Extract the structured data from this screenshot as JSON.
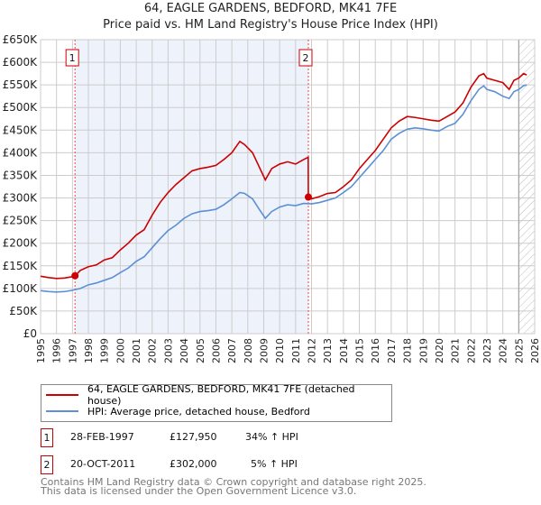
{
  "header": {
    "title": "64, EAGLE GARDENS, BEDFORD, MK41 7FE",
    "subtitle": "Price paid vs. HM Land Registry's House Price Index (HPI)"
  },
  "chart_data": {
    "type": "line",
    "title": "64, EAGLE GARDENS, BEDFORD, MK41 7FE",
    "subtitle": "Price paid vs. HM Land Registry's House Price Index (HPI)",
    "xlim": [
      1995,
      2026
    ],
    "ylim": [
      0,
      650000
    ],
    "x_ticks": [
      "1995",
      "1996",
      "1997",
      "1998",
      "1999",
      "2000",
      "2001",
      "2002",
      "2003",
      "2004",
      "2005",
      "2006",
      "2007",
      "2008",
      "2009",
      "2010",
      "2011",
      "2012",
      "2013",
      "2014",
      "2015",
      "2016",
      "2017",
      "2018",
      "2019",
      "2020",
      "2021",
      "2022",
      "2023",
      "2024",
      "2025",
      "2026"
    ],
    "y_ticks": [
      "£0",
      "£50K",
      "£100K",
      "£150K",
      "£200K",
      "£250K",
      "£300K",
      "£350K",
      "£400K",
      "£450K",
      "£500K",
      "£550K",
      "£600K",
      "£650K"
    ],
    "grid": true,
    "series": [
      {
        "name": "64, EAGLE GARDENS, BEDFORD, MK41 7FE (detached house)",
        "color": "#cc0000",
        "x": [
          1995,
          1995.5,
          1996,
          1996.5,
          1997,
          1997.16,
          1997.5,
          1998,
          1998.5,
          1999,
          1999.5,
          2000,
          2000.5,
          2001,
          2001.5,
          2002,
          2002.5,
          2003,
          2003.5,
          2004,
          2004.5,
          2005,
          2005.5,
          2006,
          2006.5,
          2007,
          2007.5,
          2007.8,
          2008.3,
          2008.7,
          2009.1,
          2009.5,
          2010,
          2010.5,
          2011,
          2011.5,
          2011.79,
          2011.8,
          2012,
          2012.5,
          2013,
          2013.5,
          2014,
          2014.5,
          2015,
          2015.5,
          2016,
          2016.5,
          2017,
          2017.5,
          2018,
          2018.5,
          2019,
          2019.5,
          2020,
          2020.5,
          2021,
          2021.5,
          2022,
          2022.5,
          2022.8,
          2023,
          2023.5,
          2024,
          2024.4,
          2024.7,
          2025,
          2025.3,
          2025.5
        ],
        "y": [
          127000,
          124000,
          122000,
          123000,
          126000,
          127950,
          140000,
          148000,
          152000,
          163000,
          168000,
          185000,
          200000,
          218000,
          230000,
          262000,
          290000,
          312000,
          330000,
          345000,
          360000,
          365000,
          368000,
          372000,
          385000,
          400000,
          425000,
          418000,
          400000,
          370000,
          340000,
          365000,
          375000,
          380000,
          375000,
          385000,
          390000,
          302000,
          298000,
          303000,
          310000,
          312000,
          325000,
          340000,
          365000,
          385000,
          405000,
          430000,
          455000,
          470000,
          480000,
          478000,
          475000,
          472000,
          470000,
          480000,
          490000,
          510000,
          545000,
          570000,
          575000,
          565000,
          560000,
          555000,
          540000,
          560000,
          565000,
          575000,
          572000
        ]
      },
      {
        "name": "HPI: Average price, detached house, Bedford",
        "color": "#5b8fd6",
        "x": [
          1995,
          1995.5,
          1996,
          1996.5,
          1997,
          1997.5,
          1998,
          1998.5,
          1999,
          1999.5,
          2000,
          2000.5,
          2001,
          2001.5,
          2002,
          2002.5,
          2003,
          2003.5,
          2004,
          2004.5,
          2005,
          2005.5,
          2006,
          2006.5,
          2007,
          2007.5,
          2007.8,
          2008.3,
          2008.7,
          2009.1,
          2009.5,
          2010,
          2010.5,
          2011,
          2011.5,
          2012,
          2012.5,
          2013,
          2013.5,
          2014,
          2014.5,
          2015,
          2015.5,
          2016,
          2016.5,
          2017,
          2017.5,
          2018,
          2018.5,
          2019,
          2019.5,
          2020,
          2020.5,
          2021,
          2021.5,
          2022,
          2022.5,
          2022.8,
          2023,
          2023.5,
          2024,
          2024.4,
          2024.7,
          2025,
          2025.3,
          2025.5
        ],
        "y": [
          95000,
          93000,
          92000,
          93000,
          96000,
          100000,
          108000,
          112000,
          118000,
          124000,
          135000,
          145000,
          160000,
          170000,
          190000,
          210000,
          228000,
          240000,
          255000,
          265000,
          270000,
          272000,
          275000,
          285000,
          298000,
          312000,
          310000,
          298000,
          276000,
          255000,
          270000,
          280000,
          285000,
          283000,
          288000,
          287000,
          290000,
          295000,
          300000,
          312000,
          325000,
          345000,
          365000,
          385000,
          405000,
          430000,
          443000,
          452000,
          455000,
          453000,
          450000,
          448000,
          458000,
          465000,
          485000,
          515000,
          540000,
          548000,
          540000,
          535000,
          525000,
          520000,
          535000,
          540000,
          548000,
          550000
        ]
      }
    ],
    "annotations": [
      {
        "label": "1",
        "x": 1997.16,
        "y": 127950
      },
      {
        "label": "2",
        "x": 2011.8,
        "y": 302000
      }
    ],
    "shaded_range": [
      1997.16,
      2011.8
    ],
    "hatched_from": 2025.0
  },
  "legend": {
    "items": [
      {
        "label": "64, EAGLE GARDENS, BEDFORD, MK41 7FE (detached house)",
        "color": "#cc0000"
      },
      {
        "label": "HPI: Average price, detached house, Bedford",
        "color": "#5b8fd6"
      }
    ]
  },
  "sales": [
    {
      "num": "1",
      "date": "28-FEB-1997",
      "price": "£127,950",
      "hpi": "34% ↑ HPI"
    },
    {
      "num": "2",
      "date": "20-OCT-2011",
      "price": "£302,000",
      "hpi": "5% ↑ HPI"
    }
  ],
  "footer": {
    "line1": "Contains HM Land Registry data © Crown copyright and database right 2025.",
    "line2": "This data is licensed under the Open Government Licence v3.0."
  }
}
